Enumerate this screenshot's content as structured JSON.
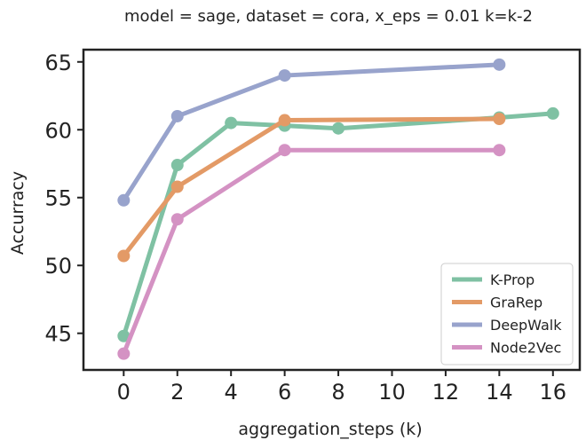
{
  "chart_data": {
    "type": "line",
    "title": "model = sage,  dataset = cora, x_eps = 0.01 k=k-2",
    "xlabel": "aggregation_steps (k)",
    "ylabel": "Accurracy",
    "xlim": [
      -1.5,
      17.0
    ],
    "ylim": [
      42.3,
      65.9
    ],
    "xticks": [
      0,
      2,
      4,
      6,
      8,
      10,
      12,
      14,
      16
    ],
    "yticks": [
      45,
      50,
      55,
      60,
      65
    ],
    "legend_position": "lower-right",
    "series": [
      {
        "name": "K-Prop",
        "color": "#7fc1a3",
        "x": [
          0,
          2,
          4,
          6,
          8,
          14,
          16
        ],
        "values": [
          44.8,
          57.4,
          60.5,
          60.3,
          60.1,
          60.9,
          61.2
        ]
      },
      {
        "name": "GraRep",
        "color": "#e39a66",
        "x": [
          0,
          2,
          6,
          14
        ],
        "values": [
          50.7,
          55.8,
          60.7,
          60.8
        ]
      },
      {
        "name": "DeepWalk",
        "color": "#98a3cc",
        "x": [
          0,
          2,
          6,
          14
        ],
        "values": [
          54.8,
          61.0,
          64.0,
          64.8
        ]
      },
      {
        "name": "Node2Vec",
        "color": "#d492c3",
        "x": [
          0,
          2,
          6,
          14
        ],
        "values": [
          43.5,
          53.4,
          58.5,
          58.5
        ]
      }
    ]
  }
}
